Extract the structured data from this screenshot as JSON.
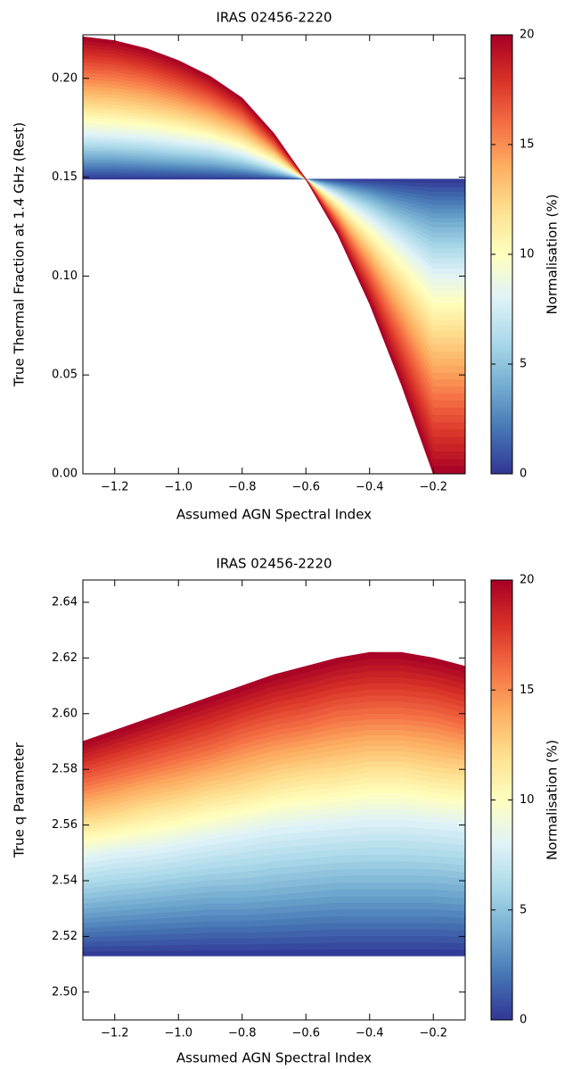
{
  "chart_data": [
    {
      "type": "band",
      "title": "IRAS 02456-2220",
      "xlabel": "Assumed AGN Spectral Index",
      "ylabel": "True Thermal Fraction at 1.4 GHz (Rest)",
      "xlim": [
        -1.3,
        -0.1
      ],
      "ylim": [
        0,
        0.222
      ],
      "xticks": [
        {
          "value": -1.2,
          "label": "−1.2"
        },
        {
          "value": -1.0,
          "label": "−1.0"
        },
        {
          "value": -0.8,
          "label": "−0.8"
        },
        {
          "value": -0.6,
          "label": "−0.6"
        },
        {
          "value": -0.4,
          "label": "−0.4"
        },
        {
          "value": -0.2,
          "label": "−0.2"
        }
      ],
      "yticks": [
        {
          "value": 0,
          "label": "0.00"
        },
        0.05,
        {
          "value": 0.1,
          "label": "0.10"
        },
        0.15,
        {
          "value": 0.2,
          "label": "0.20"
        }
      ],
      "x": [
        -1.3,
        -1.2,
        -1.1,
        -1.0,
        -0.9,
        -0.8,
        -0.7,
        -0.6,
        -0.5,
        -0.4,
        -0.3,
        -0.2,
        -0.1
      ],
      "series": [
        {
          "level": 0,
          "values": [
            0.149,
            0.149,
            0.149,
            0.149,
            0.149,
            0.149,
            0.149,
            0.149,
            0.149,
            0.149,
            0.149,
            0.149,
            0.149
          ]
        },
        {
          "level": 4,
          "values": [
            0.16,
            0.16,
            0.159,
            0.158,
            0.157,
            0.155,
            0.152,
            0.149,
            0.145,
            0.14,
            0.133,
            0.127,
            0.127
          ]
        },
        {
          "level": 8,
          "values": [
            0.172,
            0.171,
            0.17,
            0.168,
            0.166,
            0.162,
            0.156,
            0.149,
            0.14,
            0.129,
            0.116,
            0.101,
            0.101
          ]
        },
        {
          "level": 12,
          "values": [
            0.186,
            0.185,
            0.183,
            0.18,
            0.176,
            0.17,
            0.161,
            0.149,
            0.134,
            0.116,
            0.095,
            0.072,
            0.072
          ]
        },
        {
          "level": 16,
          "values": [
            0.203,
            0.202,
            0.199,
            0.194,
            0.188,
            0.18,
            0.166,
            0.149,
            0.128,
            0.102,
            0.071,
            0.037,
            0.037
          ]
        },
        {
          "level": 20,
          "values": [
            0.221,
            0.219,
            0.215,
            0.209,
            0.201,
            0.19,
            0.172,
            0.149,
            0.121,
            0.086,
            0.045,
            0.0,
            0.0
          ]
        }
      ],
      "colorbar": {
        "label": "Normalisation (%)",
        "clim": [
          0,
          20
        ],
        "ticks": [
          0,
          5,
          10,
          15,
          20
        ],
        "colormap": [
          "#313695",
          "#4575b4",
          "#74add1",
          "#abd9e9",
          "#e0f3f8",
          "#ffffbf",
          "#fee090",
          "#fdae61",
          "#f46d43",
          "#d73027",
          "#a50026"
        ]
      }
    },
    {
      "type": "band",
      "title": "IRAS 02456-2220",
      "xlabel": "Assumed AGN Spectral Index",
      "ylabel": "True q Parameter",
      "xlim": [
        -1.3,
        -0.1
      ],
      "ylim": [
        2.49,
        2.648
      ],
      "xticks": [
        {
          "value": -1.2,
          "label": "−1.2"
        },
        {
          "value": -1.0,
          "label": "−1.0"
        },
        {
          "value": -0.8,
          "label": "−0.8"
        },
        {
          "value": -0.6,
          "label": "−0.6"
        },
        {
          "value": -0.4,
          "label": "−0.4"
        },
        {
          "value": -0.2,
          "label": "−0.2"
        }
      ],
      "yticks": [
        {
          "value": 2.5,
          "label": "2.50"
        },
        2.52,
        2.54,
        2.56,
        2.58,
        {
          "value": 2.6,
          "label": "2.60"
        },
        2.62,
        2.64
      ],
      "x": [
        -1.3,
        -1.2,
        -1.1,
        -1.0,
        -0.9,
        -0.8,
        -0.7,
        -0.6,
        -0.5,
        -0.4,
        -0.3,
        -0.2,
        -0.1
      ],
      "series": [
        {
          "level": 0,
          "values": [
            2.513,
            2.513,
            2.513,
            2.513,
            2.513,
            2.513,
            2.513,
            2.513,
            2.513,
            2.513,
            2.513,
            2.513,
            2.513
          ]
        },
        {
          "level": 4,
          "values": [
            2.53,
            2.531,
            2.532,
            2.533,
            2.534,
            2.534,
            2.535,
            2.536,
            2.537,
            2.537,
            2.537,
            2.537,
            2.536
          ]
        },
        {
          "level": 8,
          "values": [
            2.548,
            2.55,
            2.551,
            2.553,
            2.555,
            2.557,
            2.559,
            2.56,
            2.561,
            2.562,
            2.562,
            2.561,
            2.56
          ]
        },
        {
          "level": 12,
          "values": [
            2.561,
            2.563,
            2.566,
            2.568,
            2.571,
            2.573,
            2.576,
            2.578,
            2.579,
            2.581,
            2.581,
            2.579,
            2.578
          ]
        },
        {
          "level": 16,
          "values": [
            2.575,
            2.578,
            2.581,
            2.584,
            2.587,
            2.591,
            2.594,
            2.596,
            2.599,
            2.6,
            2.6,
            2.599,
            2.596
          ]
        },
        {
          "level": 20,
          "values": [
            2.59,
            2.594,
            2.598,
            2.602,
            2.606,
            2.61,
            2.614,
            2.617,
            2.62,
            2.622,
            2.622,
            2.62,
            2.617
          ]
        }
      ],
      "colorbar": {
        "label": "Normalisation (%)",
        "clim": [
          0,
          20
        ],
        "ticks": [
          0,
          5,
          10,
          15,
          20
        ],
        "colormap": [
          "#313695",
          "#4575b4",
          "#74add1",
          "#abd9e9",
          "#e0f3f8",
          "#ffffbf",
          "#fee090",
          "#fdae61",
          "#f46d43",
          "#d73027",
          "#a50026"
        ]
      }
    }
  ]
}
